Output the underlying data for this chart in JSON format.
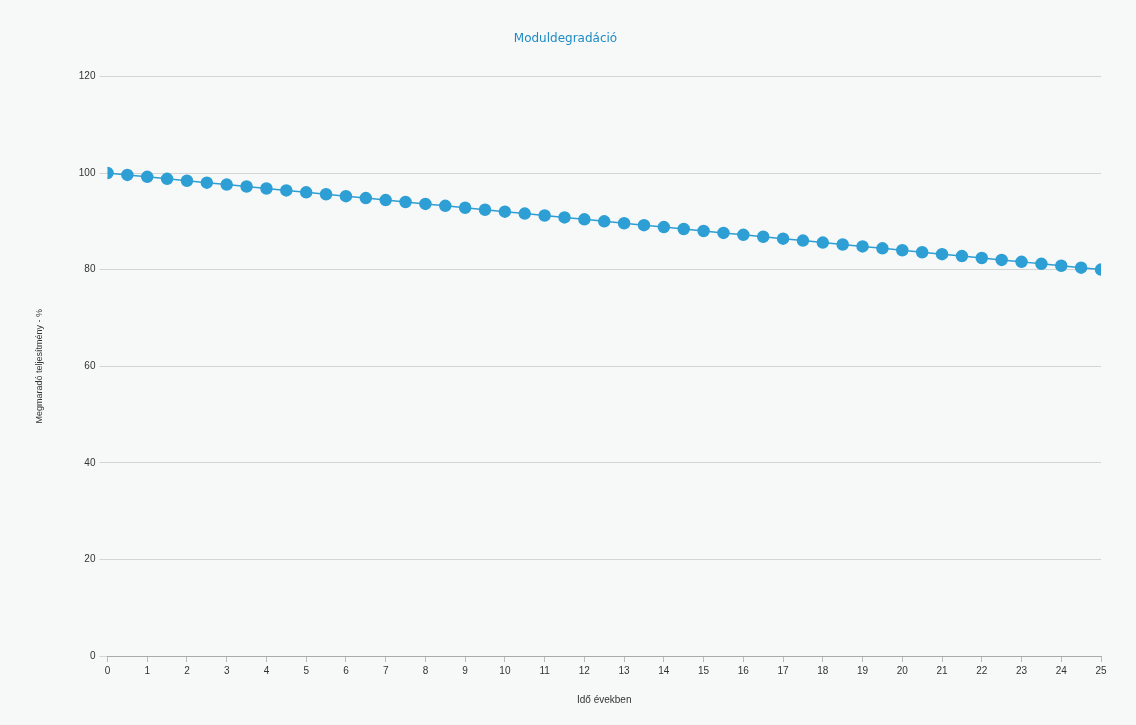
{
  "chart_data": {
    "type": "line",
    "title": "Moduldegradáció",
    "xlabel": "Idő években",
    "ylabel": "Megmaradó teljesítmény - %",
    "x": [
      0,
      0.5,
      1,
      1.5,
      2,
      2.5,
      3,
      3.5,
      4,
      4.5,
      5,
      5.5,
      6,
      6.5,
      7,
      7.5,
      8,
      8.5,
      9,
      9.5,
      10,
      10.5,
      11,
      11.5,
      12,
      12.5,
      13,
      13.5,
      14,
      14.5,
      15,
      15.5,
      16,
      16.5,
      17,
      17.5,
      18,
      18.5,
      19,
      19.5,
      20,
      20.5,
      21,
      21.5,
      22,
      22.5,
      23,
      23.5,
      24,
      24.5,
      25
    ],
    "series": [
      {
        "color": "#2e9fd4",
        "values": [
          100,
          99.6,
          99.2,
          98.8,
          98.4,
          98,
          97.6,
          97.2,
          96.8,
          96.4,
          96,
          95.6,
          95.2,
          94.8,
          94.4,
          94,
          93.6,
          93.2,
          92.8,
          92.4,
          92,
          91.6,
          91.2,
          90.8,
          90.4,
          90,
          89.6,
          89.2,
          88.8,
          88.4,
          88,
          87.6,
          87.2,
          86.8,
          86.4,
          86,
          85.6,
          85.2,
          84.8,
          84.4,
          84,
          83.6,
          83.2,
          82.8,
          82.4,
          82,
          81.6,
          81.2,
          80.8,
          80.4,
          80
        ]
      }
    ],
    "xlim": [
      0,
      25
    ],
    "xticks": [
      0,
      1,
      2,
      3,
      4,
      5,
      6,
      7,
      8,
      9,
      10,
      11,
      12,
      13,
      14,
      15,
      16,
      17,
      18,
      19,
      20,
      21,
      22,
      23,
      24,
      25
    ],
    "ylim": [
      0,
      120
    ],
    "yticks": [
      0,
      20,
      40,
      60,
      80,
      100,
      120
    ],
    "grid": "y",
    "legend": false,
    "marker": "circle",
    "line_style": "solid"
  }
}
